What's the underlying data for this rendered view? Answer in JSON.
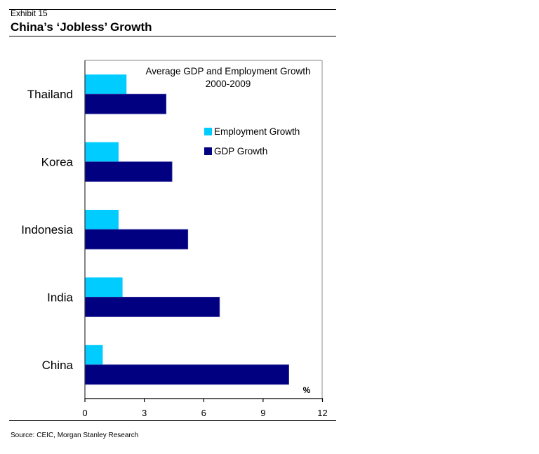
{
  "header": {
    "exhibit": "Exhibit 15",
    "title": "China’s ‘Jobless’ Growth"
  },
  "footer": {
    "source": "Source: CEIC, Morgan Stanley Research"
  },
  "chart_data": {
    "type": "bar",
    "orientation": "horizontal",
    "title": "Average GDP and Employment Growth",
    "subtitle": "2000-2009",
    "xlabel": "%",
    "ylabel": "",
    "xlim": [
      0,
      12
    ],
    "xticks": [
      0,
      3,
      6,
      9,
      12
    ],
    "grid": false,
    "legend_position": "top-right",
    "categories": [
      "Thailand",
      "Korea",
      "Indonesia",
      "India",
      "China"
    ],
    "series": [
      {
        "name": "Employment Growth",
        "color": "#00CCFF",
        "values": [
          2.1,
          1.7,
          1.7,
          1.9,
          0.9
        ]
      },
      {
        "name": "GDP Growth",
        "color": "#000080",
        "values": [
          4.1,
          4.4,
          5.2,
          6.8,
          10.3
        ]
      }
    ]
  }
}
